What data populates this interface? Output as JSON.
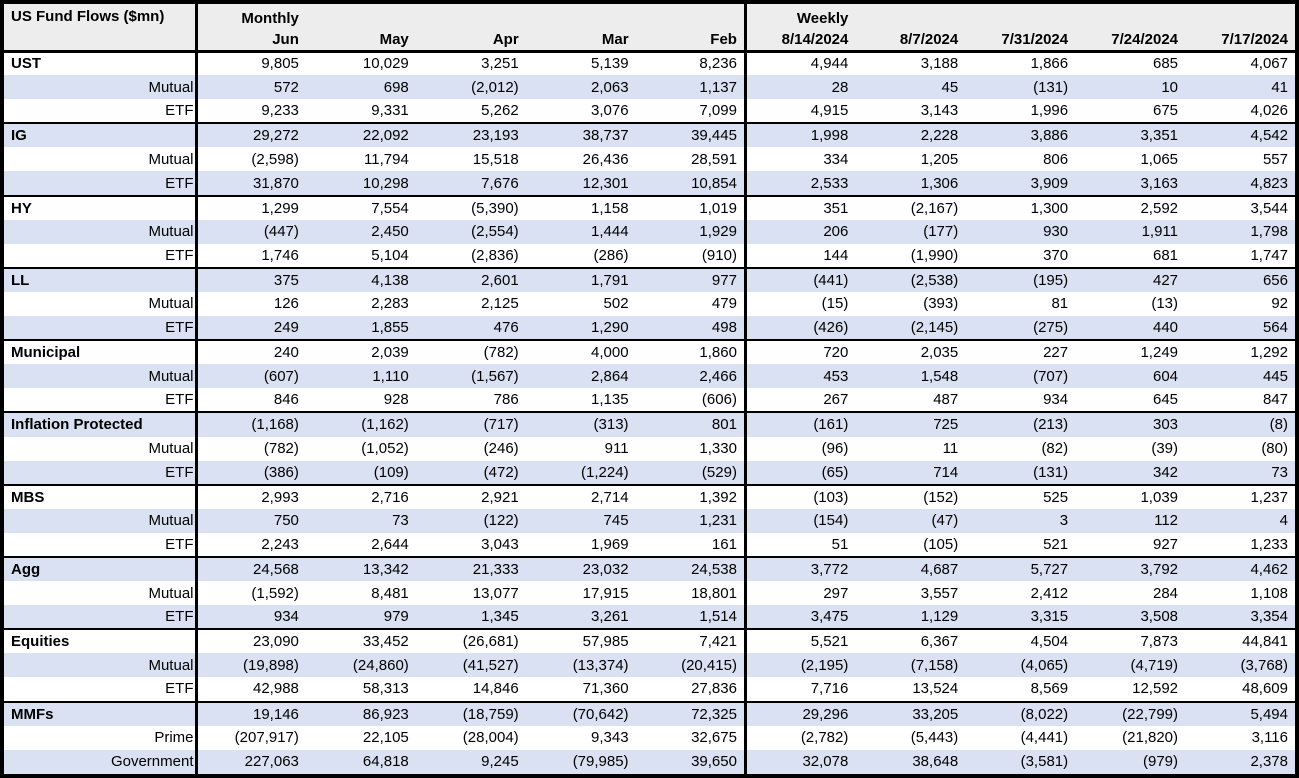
{
  "chart_data": {
    "type": "table",
    "title": "US Fund Flows ($mn)",
    "section_headers": [
      {
        "label": "Monthly",
        "span": 5
      },
      {
        "label": "Weekly",
        "span": 5
      }
    ],
    "columns": [
      "Jun",
      "May",
      "Apr",
      "Mar",
      "Feb",
      "8/14/2024",
      "8/7/2024",
      "7/31/2024",
      "7/24/2024",
      "7/17/2024"
    ],
    "groups": [
      {
        "label": "UST",
        "rows": [
          {
            "label": "UST",
            "style": "group",
            "values": [
              "9,805",
              "10,029",
              "3,251",
              "5,139",
              "8,236",
              "4,944",
              "3,188",
              "1,866",
              "685",
              "4,067"
            ]
          },
          {
            "label": "Mutual",
            "style": "sub",
            "values": [
              "572",
              "698",
              "(2,012)",
              "2,063",
              "1,137",
              "28",
              "45",
              "(131)",
              "10",
              "41"
            ]
          },
          {
            "label": "ETF",
            "style": "sub",
            "values": [
              "9,233",
              "9,331",
              "5,262",
              "3,076",
              "7,099",
              "4,915",
              "3,143",
              "1,996",
              "675",
              "4,026"
            ]
          }
        ]
      },
      {
        "label": "IG",
        "rows": [
          {
            "label": "IG",
            "style": "group",
            "values": [
              "29,272",
              "22,092",
              "23,193",
              "38,737",
              "39,445",
              "1,998",
              "2,228",
              "3,886",
              "3,351",
              "4,542"
            ]
          },
          {
            "label": "Mutual",
            "style": "sub",
            "values": [
              "(2,598)",
              "11,794",
              "15,518",
              "26,436",
              "28,591",
              "334",
              "1,205",
              "806",
              "1,065",
              "557"
            ]
          },
          {
            "label": "ETF",
            "style": "sub",
            "values": [
              "31,870",
              "10,298",
              "7,676",
              "12,301",
              "10,854",
              "2,533",
              "1,306",
              "3,909",
              "3,163",
              "4,823"
            ]
          }
        ]
      },
      {
        "label": "HY",
        "rows": [
          {
            "label": "HY",
            "style": "group",
            "values": [
              "1,299",
              "7,554",
              "(5,390)",
              "1,158",
              "1,019",
              "351",
              "(2,167)",
              "1,300",
              "2,592",
              "3,544"
            ]
          },
          {
            "label": "Mutual",
            "style": "sub",
            "values": [
              "(447)",
              "2,450",
              "(2,554)",
              "1,444",
              "1,929",
              "206",
              "(177)",
              "930",
              "1,911",
              "1,798"
            ]
          },
          {
            "label": "ETF",
            "style": "sub",
            "values": [
              "1,746",
              "5,104",
              "(2,836)",
              "(286)",
              "(910)",
              "144",
              "(1,990)",
              "370",
              "681",
              "1,747"
            ]
          }
        ]
      },
      {
        "label": "LL",
        "rows": [
          {
            "label": "LL",
            "style": "group",
            "values": [
              "375",
              "4,138",
              "2,601",
              "1,791",
              "977",
              "(441)",
              "(2,538)",
              "(195)",
              "427",
              "656"
            ]
          },
          {
            "label": "Mutual",
            "style": "sub",
            "values": [
              "126",
              "2,283",
              "2,125",
              "502",
              "479",
              "(15)",
              "(393)",
              "81",
              "(13)",
              "92"
            ]
          },
          {
            "label": "ETF",
            "style": "sub",
            "values": [
              "249",
              "1,855",
              "476",
              "1,290",
              "498",
              "(426)",
              "(2,145)",
              "(275)",
              "440",
              "564"
            ]
          }
        ]
      },
      {
        "label": "Municipal",
        "rows": [
          {
            "label": "Municipal",
            "style": "group",
            "values": [
              "240",
              "2,039",
              "(782)",
              "4,000",
              "1,860",
              "720",
              "2,035",
              "227",
              "1,249",
              "1,292"
            ]
          },
          {
            "label": "Mutual",
            "style": "sub",
            "values": [
              "(607)",
              "1,110",
              "(1,567)",
              "2,864",
              "2,466",
              "453",
              "1,548",
              "(707)",
              "604",
              "445"
            ]
          },
          {
            "label": "ETF",
            "style": "sub",
            "values": [
              "846",
              "928",
              "786",
              "1,135",
              "(606)",
              "267",
              "487",
              "934",
              "645",
              "847"
            ]
          }
        ]
      },
      {
        "label": "Inflation Protected",
        "rows": [
          {
            "label": "Inflation Protected",
            "style": "group",
            "values": [
              "(1,168)",
              "(1,162)",
              "(717)",
              "(313)",
              "801",
              "(161)",
              "725",
              "(213)",
              "303",
              "(8)"
            ]
          },
          {
            "label": "Mutual",
            "style": "sub",
            "values": [
              "(782)",
              "(1,052)",
              "(246)",
              "911",
              "1,330",
              "(96)",
              "11",
              "(82)",
              "(39)",
              "(80)"
            ]
          },
          {
            "label": "ETF",
            "style": "sub",
            "values": [
              "(386)",
              "(109)",
              "(472)",
              "(1,224)",
              "(529)",
              "(65)",
              "714",
              "(131)",
              "342",
              "73"
            ]
          }
        ]
      },
      {
        "label": "MBS",
        "rows": [
          {
            "label": "MBS",
            "style": "group",
            "values": [
              "2,993",
              "2,716",
              "2,921",
              "2,714",
              "1,392",
              "(103)",
              "(152)",
              "525",
              "1,039",
              "1,237"
            ]
          },
          {
            "label": "Mutual",
            "style": "sub",
            "values": [
              "750",
              "73",
              "(122)",
              "745",
              "1,231",
              "(154)",
              "(47)",
              "3",
              "112",
              "4"
            ]
          },
          {
            "label": "ETF",
            "style": "sub",
            "values": [
              "2,243",
              "2,644",
              "3,043",
              "1,969",
              "161",
              "51",
              "(105)",
              "521",
              "927",
              "1,233"
            ]
          }
        ]
      },
      {
        "label": "Agg",
        "rows": [
          {
            "label": "Agg",
            "style": "group",
            "values": [
              "24,568",
              "13,342",
              "21,333",
              "23,032",
              "24,538",
              "3,772",
              "4,687",
              "5,727",
              "3,792",
              "4,462"
            ]
          },
          {
            "label": "Mutual",
            "style": "sub",
            "values": [
              "(1,592)",
              "8,481",
              "13,077",
              "17,915",
              "18,801",
              "297",
              "3,557",
              "2,412",
              "284",
              "1,108"
            ]
          },
          {
            "label": "ETF",
            "style": "sub",
            "values": [
              "934",
              "979",
              "1,345",
              "3,261",
              "1,514",
              "3,475",
              "1,129",
              "3,315",
              "3,508",
              "3,354"
            ]
          }
        ]
      },
      {
        "label": "Equities",
        "rows": [
          {
            "label": "Equities",
            "style": "group",
            "values": [
              "23,090",
              "33,452",
              "(26,681)",
              "57,985",
              "7,421",
              "5,521",
              "6,367",
              "4,504",
              "7,873",
              "44,841"
            ]
          },
          {
            "label": "Mutual",
            "style": "sub",
            "values": [
              "(19,898)",
              "(24,860)",
              "(41,527)",
              "(13,374)",
              "(20,415)",
              "(2,195)",
              "(7,158)",
              "(4,065)",
              "(4,719)",
              "(3,768)"
            ]
          },
          {
            "label": "ETF",
            "style": "sub",
            "values": [
              "42,988",
              "58,313",
              "14,846",
              "71,360",
              "27,836",
              "7,716",
              "13,524",
              "8,569",
              "12,592",
              "48,609"
            ]
          }
        ]
      },
      {
        "label": "MMFs",
        "rows": [
          {
            "label": "MMFs",
            "style": "group",
            "values": [
              "19,146",
              "86,923",
              "(18,759)",
              "(70,642)",
              "72,325",
              "29,296",
              "33,205",
              "(8,022)",
              "(22,799)",
              "5,494"
            ]
          },
          {
            "label": "Prime",
            "style": "sub",
            "values": [
              "(207,917)",
              "22,105",
              "(28,004)",
              "9,343",
              "32,675",
              "(2,782)",
              "(5,443)",
              "(4,441)",
              "(21,820)",
              "3,116"
            ]
          },
          {
            "label": "Government",
            "style": "sub",
            "values": [
              "227,063",
              "64,818",
              "9,245",
              "(79,985)",
              "39,650",
              "32,078",
              "38,648",
              "(3,581)",
              "(979)",
              "2,378"
            ]
          }
        ]
      }
    ],
    "layout": {
      "negative_format": "parentheses",
      "banding_color": "#D9E1F2",
      "header_bg": "#EDEDED",
      "border_color": "#000000"
    }
  }
}
